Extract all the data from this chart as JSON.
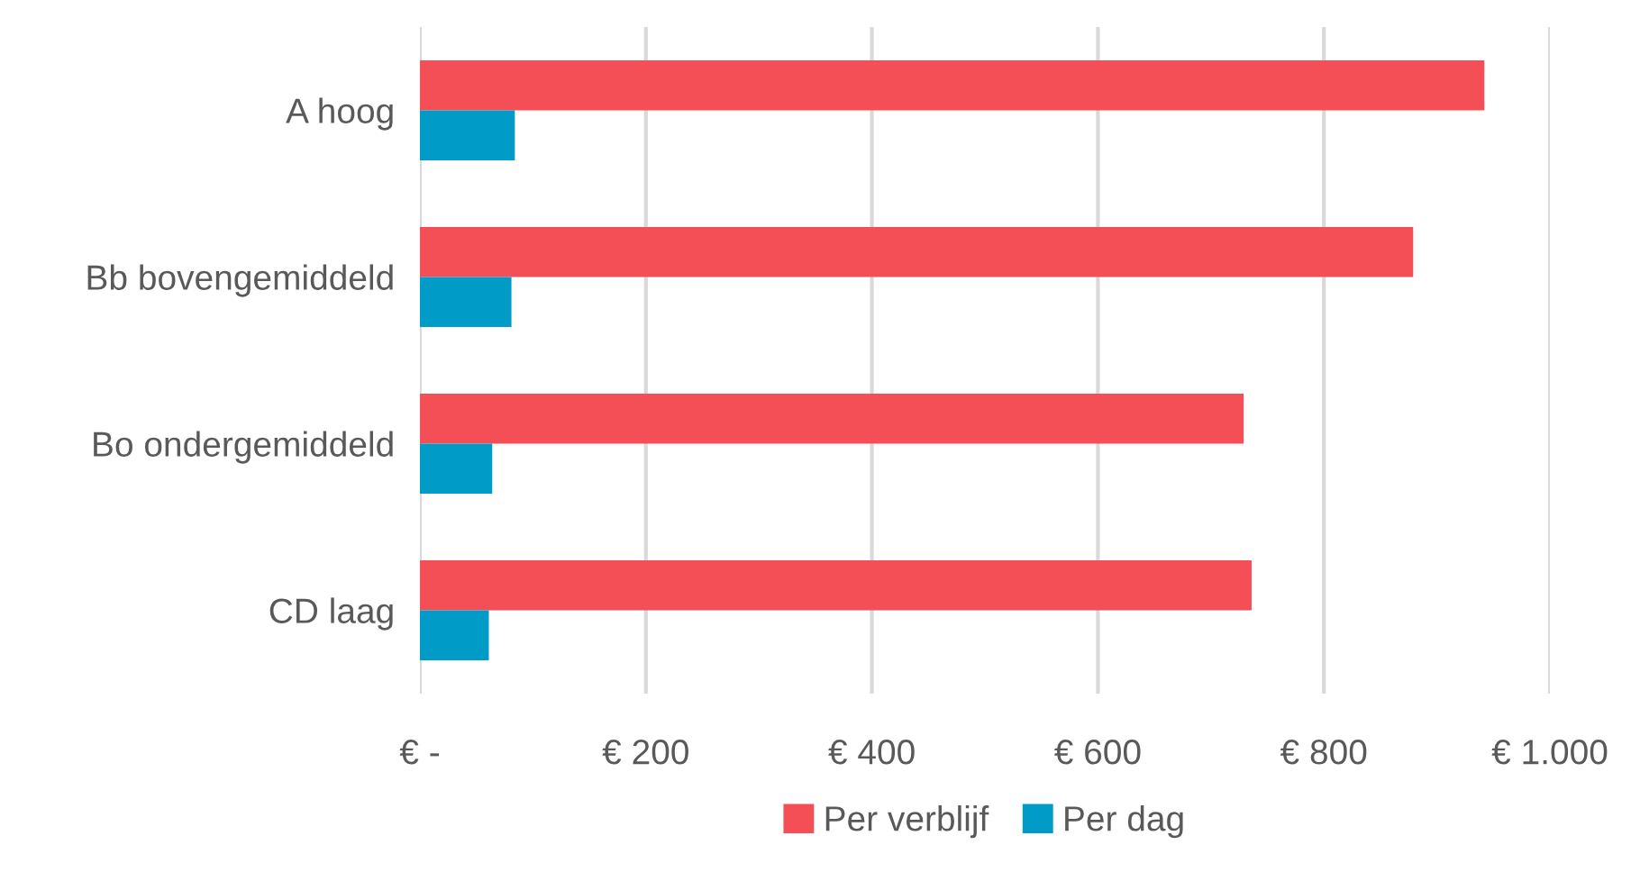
{
  "chart_data": {
    "type": "bar",
    "orientation": "horizontal",
    "categories": [
      "A hoog",
      "Bb bovengemiddeld",
      "Bo ondergemiddeld",
      "CD laag"
    ],
    "series": [
      {
        "name": "Per verblijf",
        "color": "#f44f56",
        "values": [
          942,
          879,
          729,
          736
        ]
      },
      {
        "name": "Per dag",
        "color": "#009bc6",
        "values": [
          84,
          81,
          64,
          61
        ]
      }
    ],
    "xlim": [
      0,
      1000
    ],
    "xticks": [
      {
        "value": 0,
        "label": "€ -"
      },
      {
        "value": 200,
        "label": "€ 200"
      },
      {
        "value": 400,
        "label": "€ 400"
      },
      {
        "value": 600,
        "label": "€ 600"
      },
      {
        "value": 800,
        "label": "€ 800"
      },
      {
        "value": 1000,
        "label": "€ 1.000"
      }
    ],
    "grid": "x",
    "legend": "bottom"
  }
}
